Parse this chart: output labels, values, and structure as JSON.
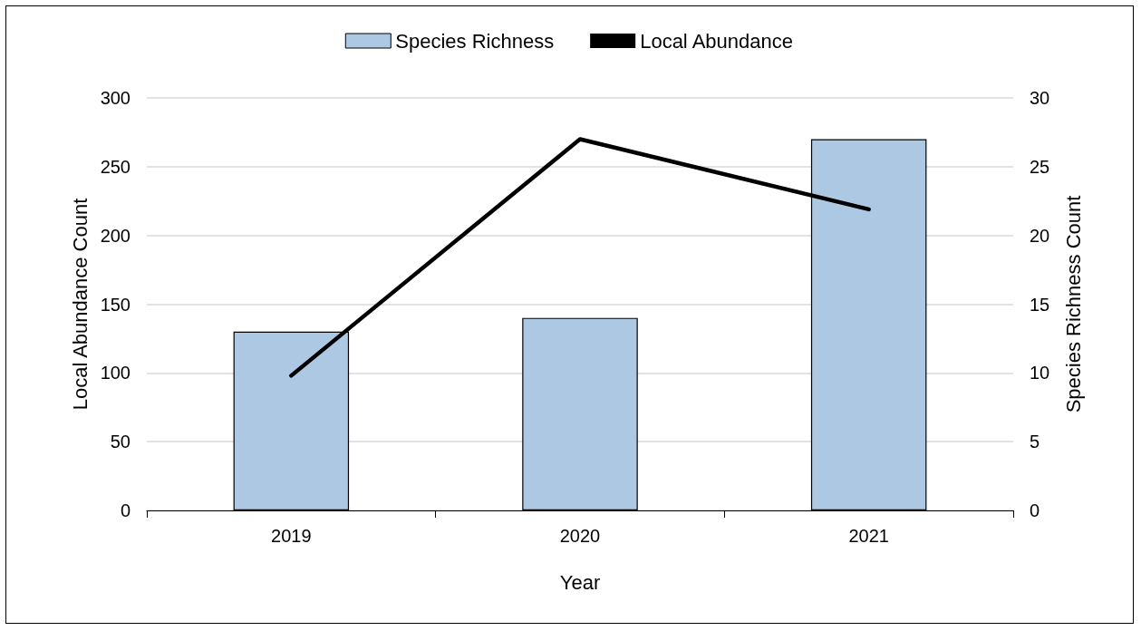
{
  "chart_data": {
    "type": "bar",
    "xlabel": "Year",
    "ylabel": "Local Abundance Count",
    "y2label": "Species Richness Count",
    "categories": [
      "2019",
      "2020",
      "2021"
    ],
    "series": [
      {
        "name": "Species Richness",
        "axis": "y2",
        "color": "#adc8e3",
        "values": [
          13,
          14,
          27
        ]
      },
      {
        "name": "Local Abundance",
        "type": "line",
        "color": "#000000",
        "values": [
          98,
          270,
          219
        ]
      }
    ],
    "ylim": [
      0,
      300
    ],
    "yticks": [
      0,
      50,
      100,
      150,
      200,
      250,
      300
    ],
    "y2lim": [
      0,
      30
    ],
    "y2ticks": [
      0,
      5,
      10,
      15,
      20,
      25,
      30
    ],
    "grid": "y",
    "legend": "top",
    "marker": "none",
    "line_style": "solid"
  }
}
